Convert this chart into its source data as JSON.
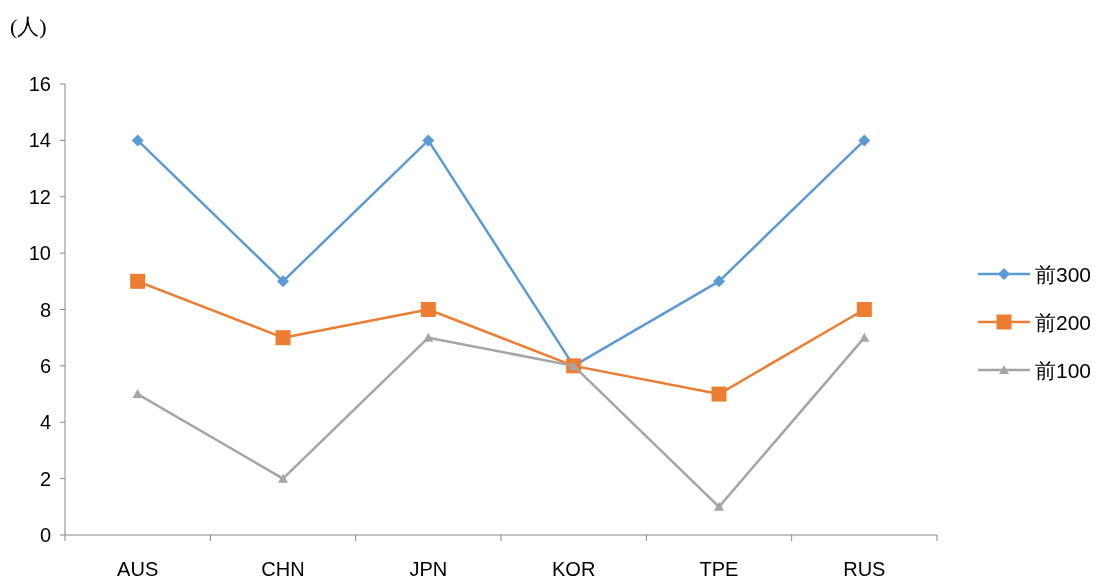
{
  "chart_data": {
    "type": "line",
    "ylabel": "(人)",
    "categories": [
      "AUS",
      "CHN",
      "JPN",
      "KOR",
      "TPE",
      "RUS"
    ],
    "series": [
      {
        "name": "前300",
        "color": "#5b9bd5",
        "marker": "diamond",
        "values": [
          14,
          9,
          14,
          6,
          9,
          14
        ]
      },
      {
        "name": "前200",
        "color": "#ed7d31",
        "marker": "square",
        "values": [
          9,
          7,
          8,
          6,
          5,
          8
        ]
      },
      {
        "name": "前100",
        "color": "#a5a5a5",
        "marker": "triangle",
        "values": [
          5,
          2,
          7,
          6,
          1,
          7
        ]
      }
    ],
    "ylim": [
      0,
      16
    ],
    "yticks": [
      0,
      2,
      4,
      6,
      8,
      10,
      12,
      14,
      16
    ],
    "grid": false,
    "legend": "right"
  }
}
